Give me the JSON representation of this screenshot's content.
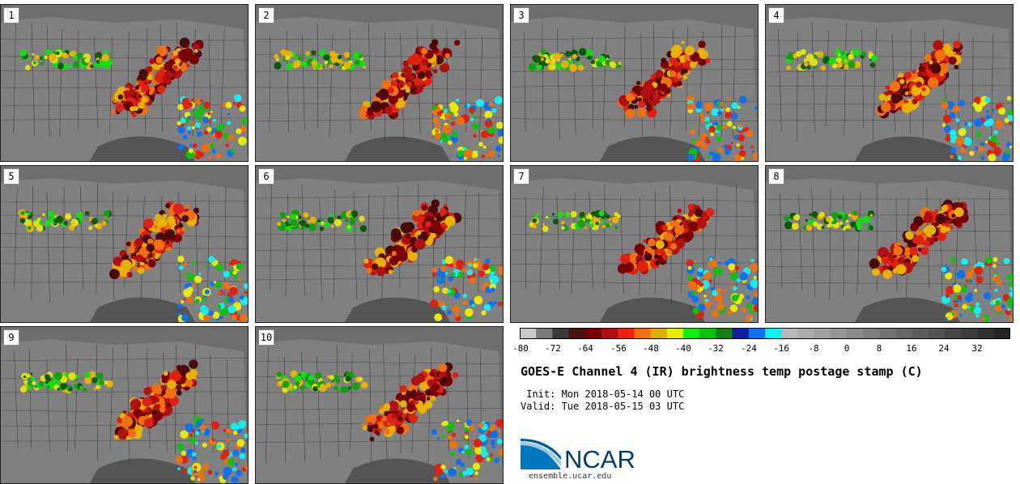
{
  "title": "GOES-E Channel 4 (IR) brightness temp postage stamp (C)",
  "init": " Init: Mon 2018-05-14 00 UTC",
  "valid": "Valid: Tue 2018-05-15 03 UTC",
  "logo": {
    "text": "NCAR",
    "url": "ensemble.ucar.edu"
  },
  "panels": [
    {
      "num": "1"
    },
    {
      "num": "2"
    },
    {
      "num": "3"
    },
    {
      "num": "4"
    },
    {
      "num": "5"
    },
    {
      "num": "6"
    },
    {
      "num": "7"
    },
    {
      "num": "8"
    },
    {
      "num": "9"
    },
    {
      "num": "10"
    }
  ],
  "colorbar": {
    "labels": [
      "-80",
      "-72",
      "-64",
      "-56",
      "-48",
      "-40",
      "-32",
      "-24",
      "-16",
      "-8",
      "0",
      "8",
      "16",
      "24",
      "32"
    ],
    "min": -80,
    "max": 40,
    "step": 4,
    "colors": [
      "#c8c8c8",
      "#7a7a7a",
      "#3a3a3a",
      "#4a1010",
      "#780000",
      "#b01010",
      "#ee2010",
      "#f07010",
      "#e0b000",
      "#e8e800",
      "#10ee10",
      "#10c010",
      "#108010",
      "#1020a0",
      "#1070f0",
      "#10f0f0",
      "#b8b8b8",
      "#acacac",
      "#a0a0a0",
      "#959595",
      "#8a8a8a",
      "#7e7e7e",
      "#737373",
      "#686868",
      "#5d5d5d",
      "#525252",
      "#474747",
      "#3c3c3c",
      "#313131",
      "#262626"
    ]
  }
}
